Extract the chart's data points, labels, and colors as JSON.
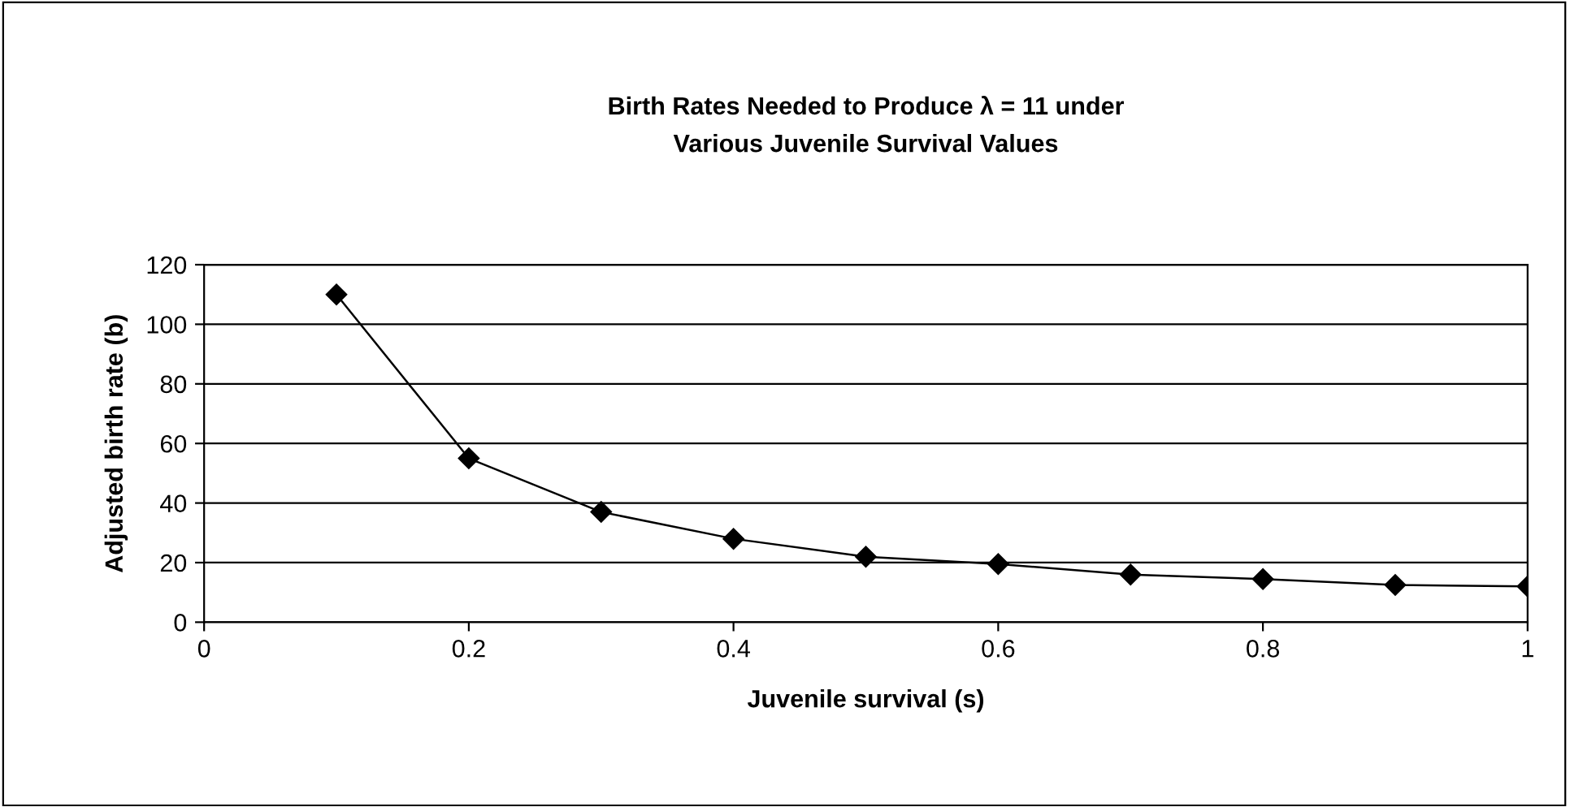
{
  "chart_data": {
    "type": "line",
    "title": "Birth Rates Needed to Produce λ = 11 under\nVarious Juvenile Survival Values",
    "xlabel": "Juvenile survival (s)",
    "ylabel": "Adjusted birth rate (b)",
    "x": [
      0.1,
      0.2,
      0.3,
      0.4,
      0.5,
      0.6,
      0.7,
      0.8,
      0.9,
      1.0
    ],
    "series": [
      {
        "color": "#000000",
        "values": [
          110,
          55,
          37,
          28,
          22,
          19.5,
          16,
          14.5,
          12.5,
          12
        ]
      }
    ],
    "xlim": [
      0,
      1
    ],
    "xticks": [
      0,
      0.2,
      0.4,
      0.6,
      0.8,
      1
    ],
    "ylim": [
      0,
      120
    ],
    "yticks": [
      0,
      20,
      40,
      60,
      80,
      100,
      120
    ],
    "grid": "y",
    "marker": "diamond",
    "line_style": "solid",
    "legend": false
  }
}
